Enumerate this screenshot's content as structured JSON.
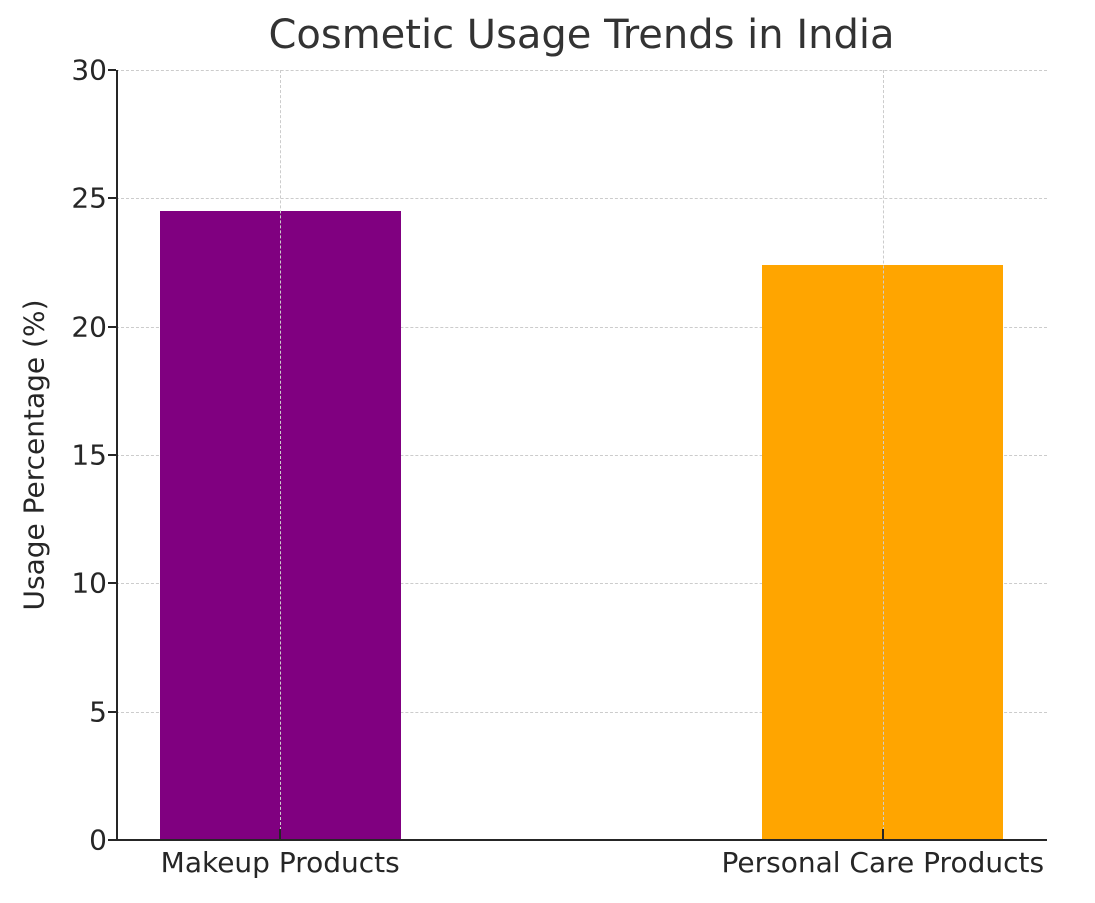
{
  "chart_data": {
    "type": "bar",
    "title": "Cosmetic Usage Trends in India",
    "xlabel": "",
    "ylabel": "Usage Percentage (%)",
    "categories": [
      "Makeup Products",
      "Personal Care Products"
    ],
    "values": [
      24.5,
      22.4
    ],
    "colors": [
      "#800080",
      "#FFA500"
    ],
    "ylim": [
      0,
      30
    ],
    "yticks": [
      0,
      5,
      10,
      15,
      20,
      25,
      30
    ],
    "grid": true,
    "grid_style": "dashed",
    "legend": null
  },
  "labels": {
    "title": "Cosmetic Usage Trends in India",
    "ylabel": "Usage Percentage (%)",
    "yticks": [
      "0",
      "5",
      "10",
      "15",
      "20",
      "25",
      "30"
    ],
    "xticks": [
      "Makeup Products",
      "Personal Care Products"
    ]
  }
}
